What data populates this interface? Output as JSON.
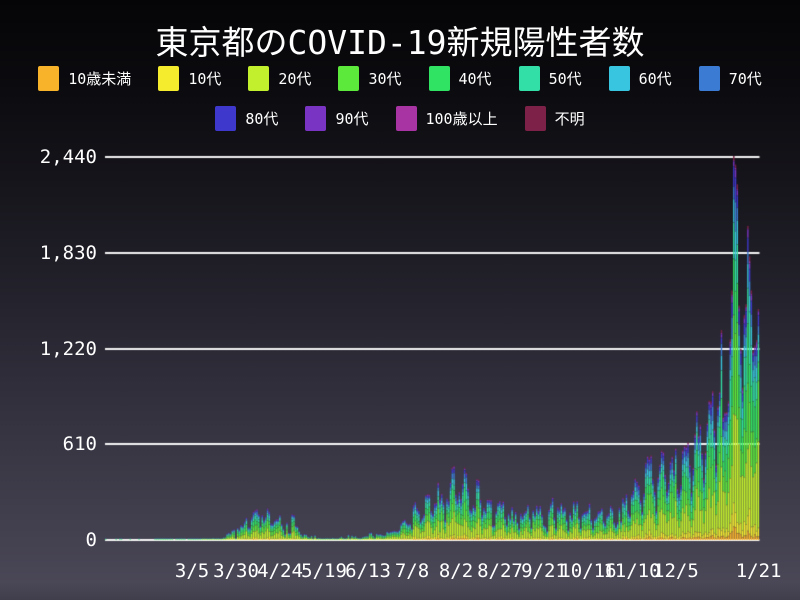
{
  "title": "東京都のCOVID-19新規陽性者数",
  "colors": {
    "background_top": "#050507",
    "background_bottom": "#4A4757",
    "grid": "#FFFFFF",
    "text": "#FFFFFF"
  },
  "legend": {
    "position": "top",
    "rows": [
      [
        {
          "label": "10歳未満",
          "color": "#F9B32B"
        },
        {
          "label": "10代",
          "color": "#F5EC2D"
        },
        {
          "label": "20代",
          "color": "#C3F02C"
        },
        {
          "label": "30代",
          "color": "#5CE93C"
        },
        {
          "label": "40代",
          "color": "#31E362"
        },
        {
          "label": "50代",
          "color": "#32DFA7"
        },
        {
          "label": "60代",
          "color": "#38C5DF"
        },
        {
          "label": "70代",
          "color": "#3B7BD3"
        }
      ],
      [
        {
          "label": "80代",
          "color": "#3E38CC"
        },
        {
          "label": "90代",
          "color": "#7A34C4"
        },
        {
          "label": "100歳以上",
          "color": "#A833A3"
        },
        {
          "label": "不明",
          "color": "#7E2148"
        }
      ]
    ]
  },
  "chart_data": {
    "type": "bar",
    "stacked": true,
    "title": "東京都のCOVID-19新規陽性者数",
    "xlabel": "",
    "ylabel": "",
    "ylim": [
      0,
      2440
    ],
    "y_ticks": [
      0,
      610,
      1220,
      1830,
      2440
    ],
    "y_tick_labels": [
      "0",
      "610",
      "1,220",
      "1,830",
      "2,440"
    ],
    "grid": "horizontal-only",
    "legend_position": "top",
    "start_date": "2020-01-16",
    "end_date": "2021-01-21",
    "x_ticks": [
      {
        "label": "3/5",
        "day_index": 49
      },
      {
        "label": "3/30",
        "day_index": 74
      },
      {
        "label": "4/24",
        "day_index": 99
      },
      {
        "label": "5/19",
        "day_index": 124
      },
      {
        "label": "6/13",
        "day_index": 149
      },
      {
        "label": "7/8",
        "day_index": 174
      },
      {
        "label": "8/2",
        "day_index": 199
      },
      {
        "label": "8/27",
        "day_index": 224
      },
      {
        "label": "9/21",
        "day_index": 249
      },
      {
        "label": "10/16",
        "day_index": 274
      },
      {
        "label": "11/10",
        "day_index": 299
      },
      {
        "label": "12/5",
        "day_index": 324
      },
      {
        "label": "1/21",
        "day_index": 371
      }
    ],
    "age_groups": [
      {
        "name": "10歳未満",
        "color": "#F9B32B",
        "share": 0.025
      },
      {
        "name": "10代",
        "color": "#F5EC2D",
        "share": 0.05
      },
      {
        "name": "20代",
        "color": "#C3F02C",
        "share": 0.265
      },
      {
        "name": "30代",
        "color": "#5CE93C",
        "share": 0.2
      },
      {
        "name": "40代",
        "color": "#31E362",
        "share": 0.15
      },
      {
        "name": "50代",
        "color": "#32DFA7",
        "share": 0.11
      },
      {
        "name": "60代",
        "color": "#38C5DF",
        "share": 0.065
      },
      {
        "name": "70代",
        "color": "#3B7BD3",
        "share": 0.055
      },
      {
        "name": "80代",
        "color": "#3E38CC",
        "share": 0.045
      },
      {
        "name": "90代",
        "color": "#7A34C4",
        "share": 0.02
      },
      {
        "name": "100歳以上",
        "color": "#A833A3",
        "share": 0.004
      },
      {
        "name": "不明",
        "color": "#7E2148",
        "share": 0.011
      }
    ],
    "daily_totals": [
      1,
      0,
      0,
      0,
      0,
      0,
      1,
      0,
      1,
      1,
      0,
      0,
      0,
      0,
      1,
      0,
      0,
      0,
      0,
      1,
      0,
      0,
      0,
      0,
      0,
      0,
      0,
      0,
      3,
      2,
      8,
      5,
      3,
      3,
      3,
      2,
      3,
      3,
      1,
      0,
      1,
      2,
      2,
      2,
      2,
      1,
      0,
      1,
      3,
      2,
      6,
      4,
      5,
      1,
      5,
      7,
      2,
      2,
      4,
      2,
      3,
      12,
      9,
      7,
      11,
      7,
      3,
      16,
      17,
      41,
      47,
      40,
      63,
      68,
      13,
      78,
      66,
      97,
      89,
      118,
      143,
      83,
      80,
      144,
      181,
      189,
      197,
      166,
      91,
      161,
      127,
      149,
      201,
      181,
      107,
      102,
      123,
      132,
      134,
      161,
      103,
      72,
      39,
      112,
      47,
      46,
      165,
      160,
      93,
      87,
      57,
      38,
      23,
      39,
      36,
      22,
      15,
      28,
      10,
      30,
      9,
      14,
      5,
      10,
      5,
      5,
      11,
      3,
      2,
      14,
      8,
      10,
      10,
      15,
      22,
      14,
      5,
      13,
      34,
      12,
      28,
      20,
      26,
      14,
      13,
      12,
      18,
      22,
      25,
      24,
      47,
      48,
      27,
      16,
      41,
      35,
      39,
      35,
      29,
      31,
      55,
      48,
      54,
      57,
      60,
      58,
      54,
      67,
      107,
      124,
      131,
      111,
      102,
      106,
      75,
      224,
      243,
      206,
      188,
      119,
      143,
      165,
      286,
      293,
      290,
      188,
      168,
      237,
      238,
      366,
      260,
      295,
      239,
      131,
      266,
      250,
      367,
      463,
      472,
      292,
      258,
      309,
      263,
      360,
      462,
      429,
      331,
      197,
      188,
      222,
      206,
      389,
      385,
      260,
      161,
      207,
      186,
      258,
      256,
      256,
      95,
      95,
      182,
      236,
      250,
      226,
      247,
      148,
      100,
      170,
      141,
      211,
      136,
      181,
      116,
      77,
      170,
      149,
      176,
      187,
      226,
      146,
      80,
      191,
      163,
      220,
      187,
      218,
      162,
      98,
      88,
      59,
      195,
      235,
      270,
      144,
      78,
      212,
      194,
      235,
      196,
      207,
      132,
      66,
      177,
      142,
      248,
      203,
      249,
      146,
      78,
      166,
      177,
      184,
      187,
      235,
      132,
      78,
      139,
      150,
      185,
      186,
      203,
      124,
      102,
      158,
      171,
      221,
      204,
      116,
      87,
      116,
      209,
      122,
      269,
      242,
      294,
      189,
      157,
      293,
      317,
      393,
      374,
      352,
      255,
      180,
      298,
      493,
      534,
      522,
      539,
      391,
      314,
      186,
      401,
      481,
      570,
      561,
      418,
      311,
      372,
      500,
      533,
      449,
      584,
      327,
      299,
      352,
      572,
      602,
      595,
      621,
      480,
      305,
      460,
      678,
      822,
      664,
      736,
      556,
      392,
      563,
      748,
      888,
      884,
      949,
      708,
      481,
      856,
      944,
      1337,
      783,
      814,
      816,
      884,
      1278,
      1591,
      2447,
      2392,
      2268,
      1494,
      1219,
      970,
      1433,
      1502,
      2001,
      1809,
      1592,
      1204,
      1240,
      1274,
      1471
    ]
  }
}
